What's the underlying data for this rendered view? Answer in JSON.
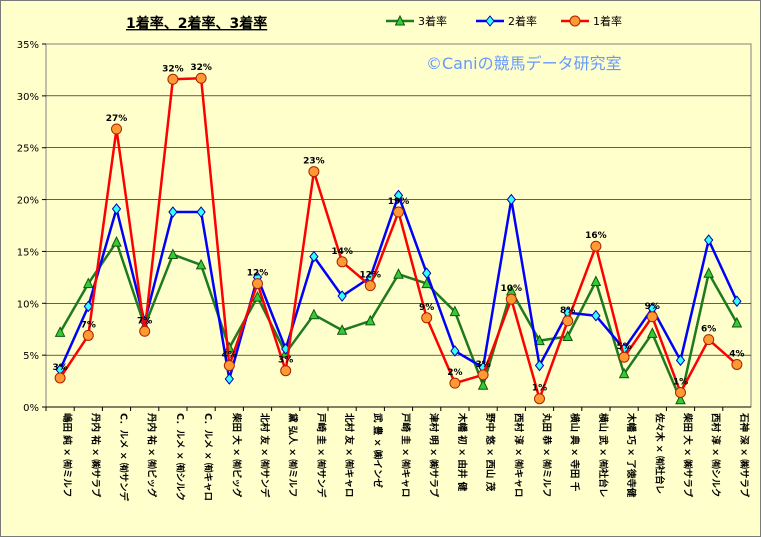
{
  "chart_data": {
    "type": "line",
    "title": "1着率、2着率、3着率",
    "watermark": "©Caniの競馬データ研究室",
    "ylim": [
      0,
      35
    ],
    "yticks": [
      "0%",
      "5%",
      "10%",
      "15%",
      "20%",
      "25%",
      "30%",
      "35%"
    ],
    "grid": true,
    "legend_position": "top-right",
    "categories": [
      "嶋田 純 × ㈲ミルフ",
      "丹内 祐 × ㈱サラブ",
      "C．ルメ × ㈲サンデ",
      "丹内 祐 × ㈲ビッグ",
      "C．ルメ × ㈲シルク",
      "C．ルメ × ㈲キャロ",
      "柴田 大 × ㈲ビッグ",
      "北村 友 × ㈲サンデ",
      "黛 弘人 × ㈲ミルフ",
      "戸崎 圭 × ㈲サンデ",
      "北村 友 × ㈲キャロ",
      "武 豊 × ㈱インゼ",
      "戸崎 圭 × ㈲キャロ",
      "津村 明 × ㈱サラブ",
      "木幡 初 × 由井 健",
      "野中 悠 × 西山 茂",
      "西村 淳 × ㈲キャロ",
      "丸田 恭 × ㈲ミルフ",
      "横山 典 × 寺田 千",
      "横山 武 × ㈲社台レ",
      "木幡 巧 × 了徳寺健",
      "佐々木 × ㈲社台レ",
      "柴田 大 × ㈱サラブ",
      "西村 淳 × ㈲シルク",
      "石神 深 × ㈱サラブ"
    ],
    "series": [
      {
        "name": "3着率",
        "color": "#1f7a1f",
        "marker": "triangle",
        "marker_fill": "#33cc33",
        "values": [
          7.2,
          11.9,
          15.9,
          7.8,
          14.7,
          13.7,
          5.7,
          10.6,
          5.2,
          8.9,
          7.4,
          8.3,
          12.8,
          11.9,
          9.2,
          2.1,
          11.2,
          6.4,
          6.8,
          12.1,
          3.2,
          7.1,
          0.7,
          12.9,
          8.1
        ]
      },
      {
        "name": "2着率",
        "color": "#0000ff",
        "marker": "diamond",
        "marker_fill": "#33ffff",
        "values": [
          3.6,
          9.7,
          19.1,
          8.2,
          18.8,
          18.8,
          2.7,
          12.5,
          5.6,
          14.5,
          10.7,
          12.5,
          20.4,
          12.9,
          5.4,
          3.8,
          20.0,
          4.0,
          9.1,
          8.8,
          5.6,
          9.5,
          4.5,
          16.1,
          10.2
        ]
      },
      {
        "name": "1着率",
        "color": "#ff0000",
        "marker": "circle",
        "marker_fill": "#ff9933",
        "values": [
          2.8,
          6.9,
          26.8,
          7.3,
          31.6,
          31.7,
          4.0,
          11.9,
          3.5,
          22.7,
          14.0,
          11.7,
          18.8,
          8.6,
          2.3,
          3.1,
          10.4,
          0.8,
          8.3,
          15.5,
          4.8,
          8.7,
          1.4,
          6.5,
          4.1
        ]
      }
    ],
    "data_labels": [
      "3%",
      "7%",
      "27%",
      "7%",
      "32%",
      "32%",
      "4%",
      "12%",
      "3%",
      "23%",
      "14%",
      "12%",
      "19%",
      "9%",
      "2%",
      "3%",
      "10%",
      "1%",
      "8%",
      "16%",
      "5%",
      "9%",
      "1%",
      "6%",
      "4%"
    ]
  }
}
